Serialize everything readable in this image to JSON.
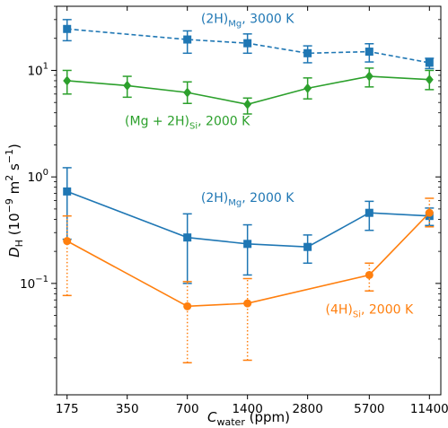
{
  "chart_data": {
    "type": "line",
    "xlabel": {
      "main": "C",
      "sub": "water",
      "unit": " (ppm)"
    },
    "ylabel": {
      "main": "D",
      "sub": "H",
      "unit_open": " (10",
      "exp1": "−9",
      "mid": " m",
      "exp2": "2",
      "mid2": " s",
      "exp3": "−1",
      "close": ")"
    },
    "x_scale": "log",
    "y_scale": "log",
    "ylim": [
      0.009,
      40
    ],
    "xlim": [
      155,
      13000
    ],
    "categories": [
      "175",
      "350",
      "700",
      "1400",
      "2800",
      "5700",
      "11400"
    ],
    "x_ticks": [
      175,
      350,
      700,
      1400,
      2800,
      5700,
      11400
    ],
    "y_ticks": [
      {
        "value": 0.1,
        "base": "10",
        "exp": "−1"
      },
      {
        "value": 1,
        "base": "10",
        "exp": "0"
      },
      {
        "value": 10,
        "base": "10",
        "exp": "1"
      }
    ],
    "series": [
      {
        "color": "#1f77b4",
        "marker": "square",
        "linestyle": "dashed",
        "x": [
          175,
          700,
          1400,
          2800,
          5700,
          11400
        ],
        "y": [
          24.5,
          19.5,
          18.0,
          14.5,
          15.0,
          11.8
        ],
        "err_low": [
          19.0,
          14.5,
          14.5,
          11.8,
          12.0,
          10.4
        ],
        "err_high": [
          30.0,
          23.5,
          22.0,
          17.0,
          17.8,
          13.0
        ],
        "err_style": "solid"
      },
      {
        "color": "#2ca02c",
        "marker": "diamond",
        "linestyle": "solid",
        "x": [
          175,
          350,
          700,
          1400,
          2800,
          5700,
          11400
        ],
        "y": [
          8.0,
          7.2,
          6.2,
          4.8,
          6.8,
          8.8,
          8.2
        ],
        "err_low": [
          6.0,
          5.6,
          4.9,
          3.9,
          5.4,
          7.0,
          6.6
        ],
        "err_high": [
          10.0,
          8.8,
          7.8,
          5.5,
          8.5,
          10.5,
          10.0
        ],
        "err_style": "solid"
      },
      {
        "color": "#1f77b4",
        "marker": "square",
        "linestyle": "solid",
        "x": [
          175,
          700,
          1400,
          2800,
          5700,
          11400
        ],
        "y": [
          0.73,
          0.27,
          0.235,
          0.22,
          0.46,
          0.43
        ],
        "err_low": [
          0.26,
          0.1,
          0.12,
          0.155,
          0.315,
          0.35
        ],
        "err_high": [
          1.22,
          0.45,
          0.355,
          0.285,
          0.59,
          0.51
        ],
        "err_style": "solid"
      },
      {
        "color": "#ff7f0e",
        "marker": "circle",
        "linestyle": "solid",
        "x": [
          175,
          700,
          1400,
          5700,
          11400
        ],
        "y": [
          0.25,
          0.061,
          0.065,
          0.12,
          0.46
        ],
        "err_low": [
          0.077,
          0.018,
          0.019,
          0.085,
          0.34
        ],
        "err_high": [
          0.43,
          0.104,
          0.111,
          0.155,
          0.63
        ],
        "err_style": "dotted"
      }
    ],
    "annotations": [
      {
        "main": "(2H)",
        "sub": "Mg",
        "tail": ", 3000 K",
        "color": "#1f77b4",
        "at": [
          1400,
          28
        ]
      },
      {
        "main": "(Mg + 2H)",
        "sub": "Si",
        "tail": ", 2000 K",
        "color": "#2ca02c",
        "at": [
          700,
          3.05
        ]
      },
      {
        "main": "(2H)",
        "sub": "Mg",
        "tail": ", 2000 K",
        "color": "#1f77b4",
        "at": [
          1400,
          0.58
        ]
      },
      {
        "main": "(4H)",
        "sub": "Si",
        "tail": ", 2000 K",
        "color": "#ff7f0e",
        "at": [
          5700,
          0.052
        ]
      }
    ]
  }
}
